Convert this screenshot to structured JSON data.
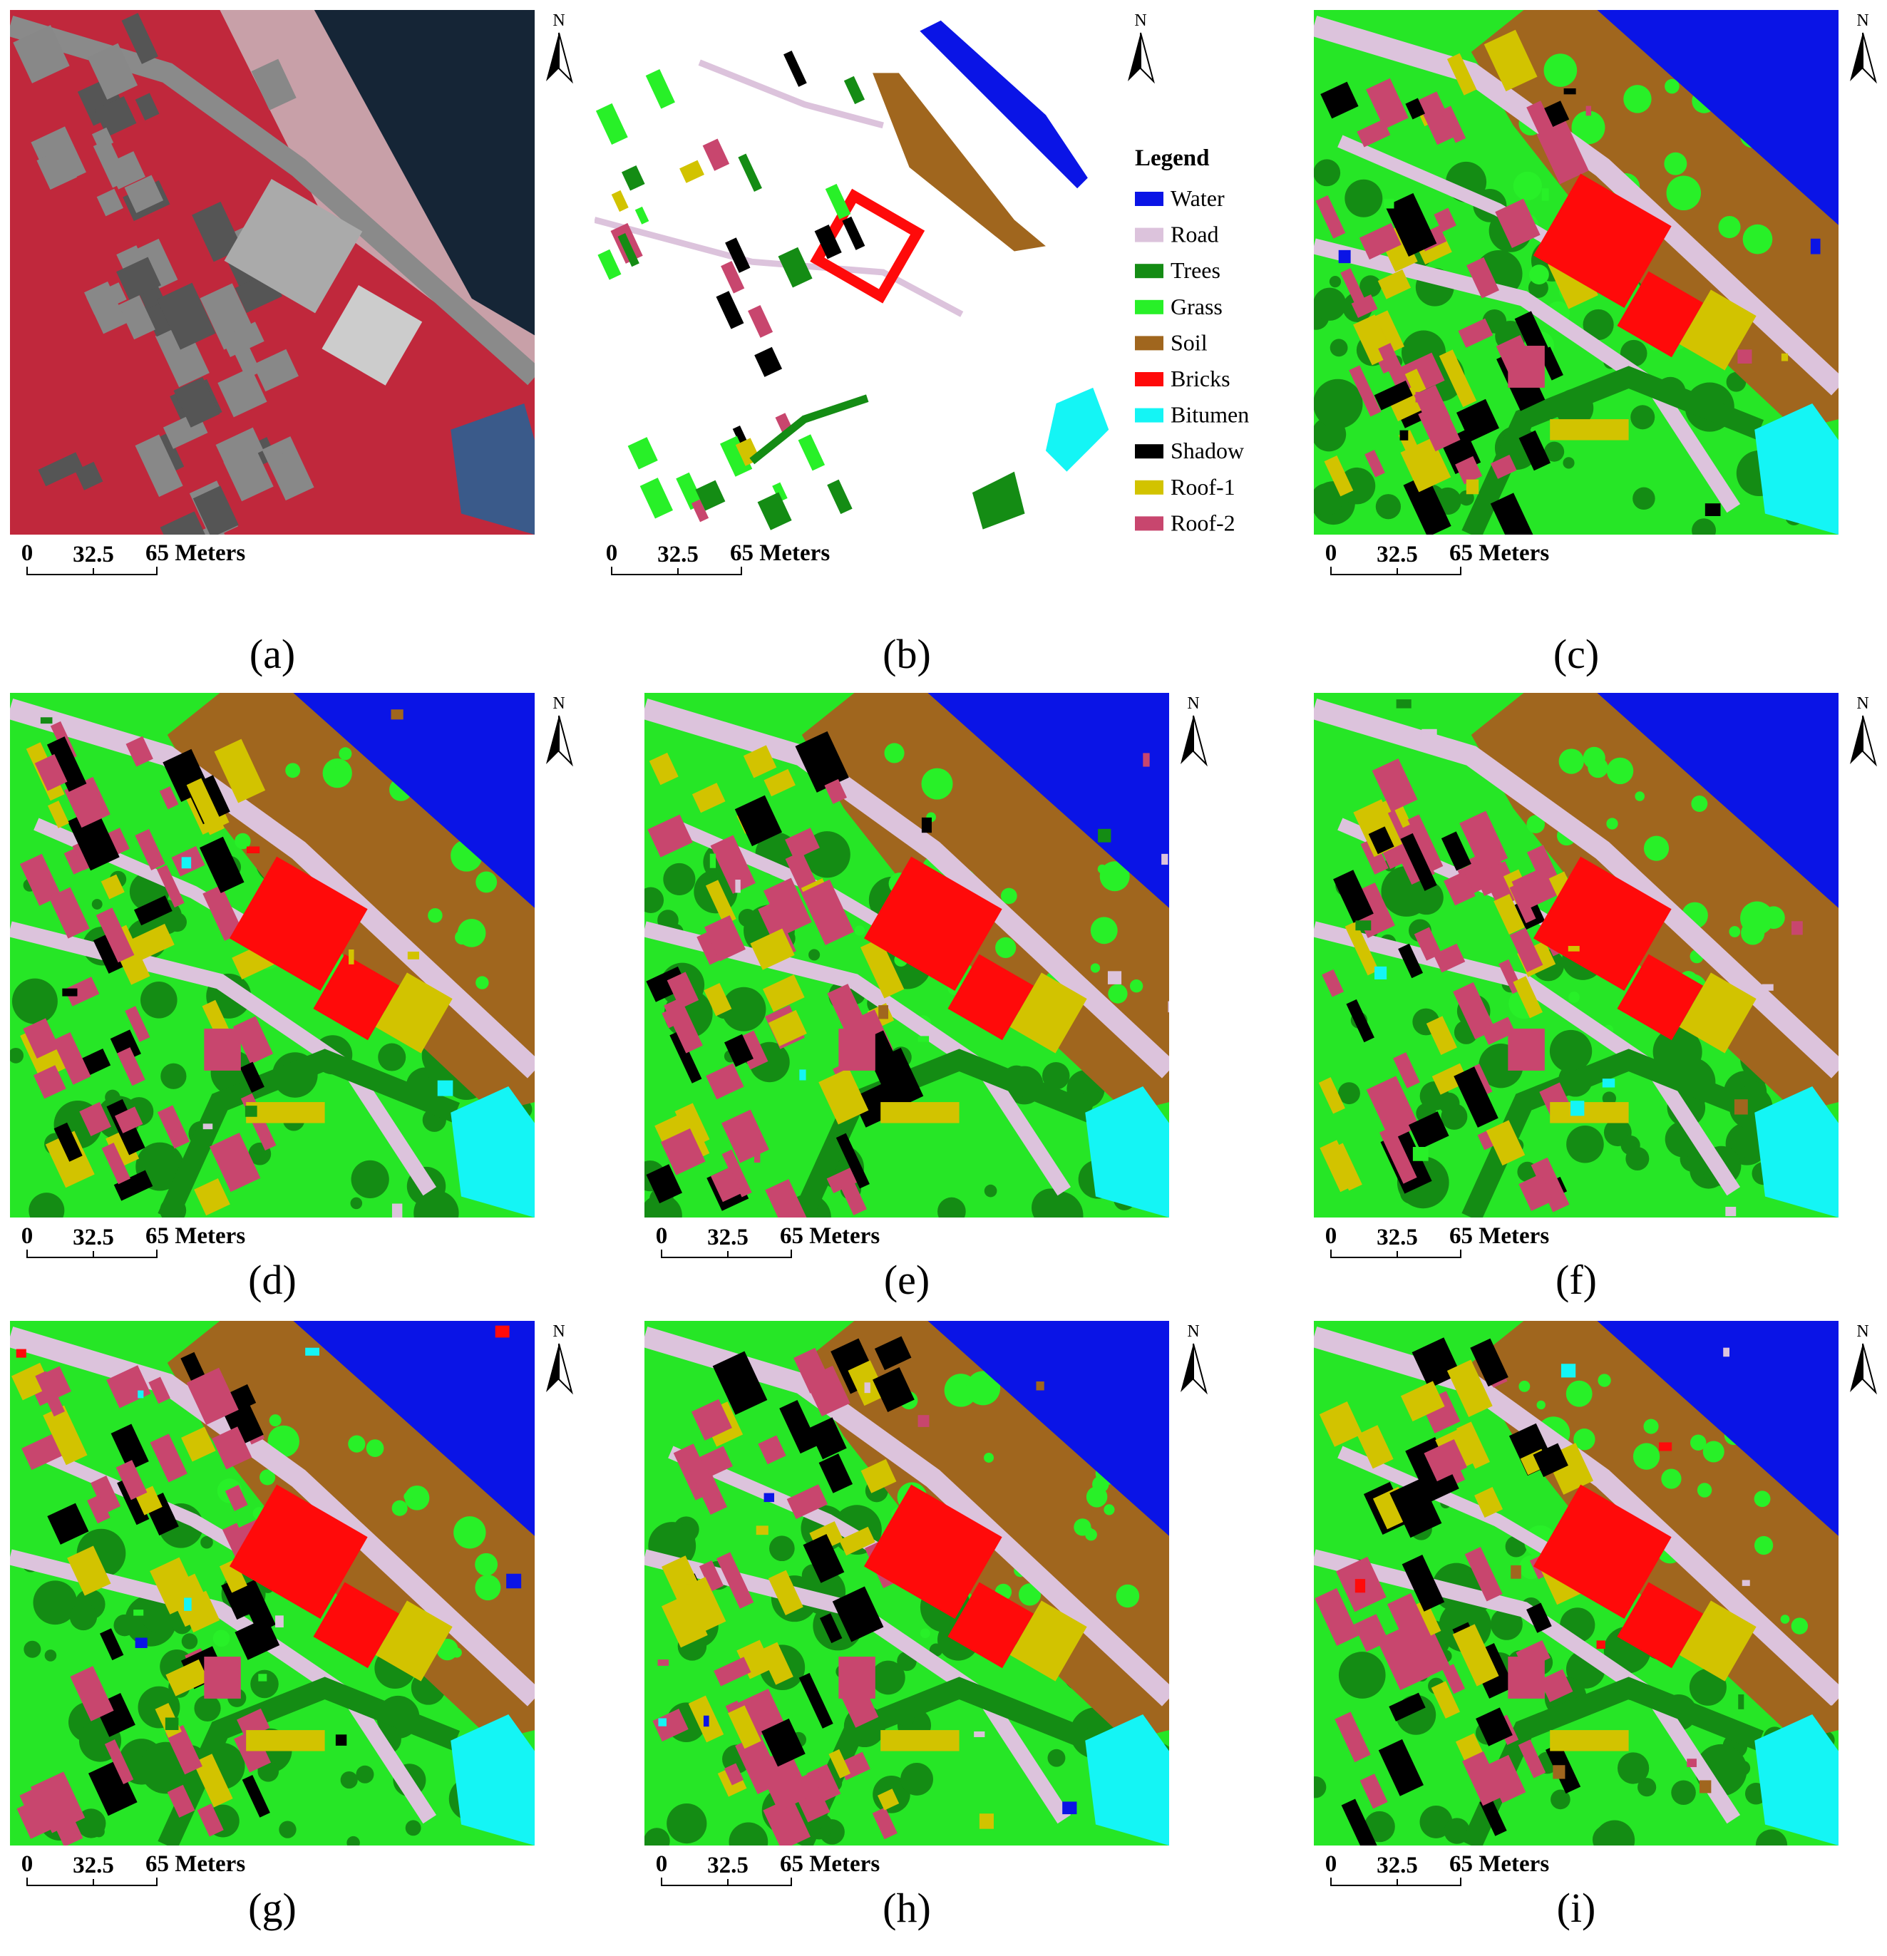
{
  "panels": [
    {
      "label": "(a)"
    },
    {
      "label": "(b)"
    },
    {
      "label": "(c)"
    },
    {
      "label": "(d)"
    },
    {
      "label": "(e)"
    },
    {
      "label": "(f)"
    },
    {
      "label": "(g)"
    },
    {
      "label": "(h)"
    },
    {
      "label": "(i)"
    }
  ],
  "north": "N",
  "scale_bar": {
    "labels": [
      "0",
      "32.5",
      "65 Meters"
    ]
  },
  "legend": {
    "title": "Legend",
    "items": [
      {
        "name": "Water",
        "color": "#0a14e6"
      },
      {
        "name": "Road",
        "color": "#dcc3dc"
      },
      {
        "name": "Trees",
        "color": "#148c14"
      },
      {
        "name": "Grass",
        "color": "#28f028"
      },
      {
        "name": "Soil",
        "color": "#a0661e"
      },
      {
        "name": "Bricks",
        "color": "#ff0a0a"
      },
      {
        "name": "Bitumen",
        "color": "#14f5f5"
      },
      {
        "name": "Shadow",
        "color": "#000000"
      },
      {
        "name": "Roof-1",
        "color": "#d2c300"
      },
      {
        "name": "Roof-2",
        "color": "#c8466e"
      }
    ]
  }
}
